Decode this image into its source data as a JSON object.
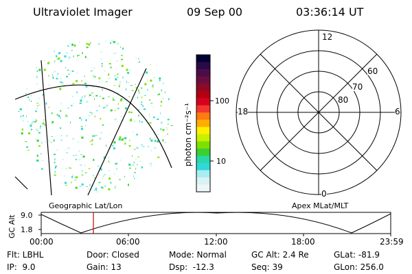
{
  "header": {
    "title": "Ultraviolet Imager",
    "date": "09 Sep 00",
    "time": "03:36:14 UT"
  },
  "image_panel": {
    "label": "Geographic Lat/Lon"
  },
  "colorbar": {
    "label": "photon cm⁻²s⁻¹",
    "ticks": [
      "100",
      "10"
    ],
    "colors": [
      "#000033",
      "#2a0a44",
      "#4b0d4a",
      "#6b0d40",
      "#8c0a25",
      "#b30012",
      "#d6001f",
      "#f0382c",
      "#ff7a10",
      "#ffae00",
      "#fff000",
      "#c8f000",
      "#7ee000",
      "#3ad030",
      "#28d8a8",
      "#30d8d8",
      "#a8eef0",
      "#d9f2f2",
      "#eef7f7"
    ]
  },
  "polar_plot": {
    "label": "Apex MLat/MLT",
    "mlt_labels": [
      "12",
      "18",
      "6",
      "0"
    ],
    "mlat_labels": [
      "60",
      "70",
      "80"
    ]
  },
  "altitude_strip": {
    "ylabel": "GC Alt",
    "y_ticks": [
      "9.0",
      "1.8"
    ],
    "x_ticks": [
      "00:00",
      "06:00",
      "12:00",
      "18:00",
      "23:59"
    ],
    "marker_color": "#cc0000",
    "marker_time": "03:36"
  },
  "status": {
    "row1": [
      "Flt: LBHL",
      "Door: Closed",
      "Mode: Normal",
      "GC Alt: 2.4 Re",
      "GLat: -81.9"
    ],
    "row2": [
      "IP:  9.0",
      "Gain: 13",
      "Dsp:  -12.3",
      "Seq: 39",
      "GLon: 256.0"
    ]
  }
}
